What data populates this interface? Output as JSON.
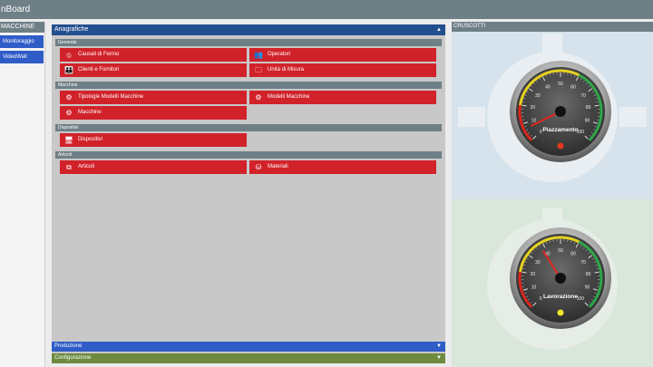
{
  "app": {
    "title": "nBoard"
  },
  "left": {
    "header": "MACCHINE",
    "items": [
      {
        "label": "Monitoraggio"
      },
      {
        "label": "VideoWall"
      }
    ]
  },
  "center": {
    "header": "Anagrafiche",
    "sections": {
      "generale": {
        "title": "Generale",
        "causali": "Causali di Fermo",
        "operatori": "Operatori",
        "clienti": "Clienti e Fornitori",
        "unita": "Unità di Misura"
      },
      "macchine": {
        "title": "Macchine",
        "tipologie": "Tipologie Modelli Macchine",
        "modelli": "Modelli Macchine",
        "macchine": "Macchine"
      },
      "dispositivi": {
        "title": "Dispositivi",
        "dispositivi": "Dispositivi"
      },
      "articoli": {
        "title": "Articoli",
        "articoli": "Articoli",
        "materiali": "Materiali"
      }
    },
    "footers": {
      "produzione": "Produzione",
      "configurazione": "Configurazione"
    }
  },
  "right": {
    "header": "CRUSCOTTI",
    "gauges": [
      {
        "label": "Piazzamento",
        "value": 7,
        "max": 100,
        "ticks": [
          "0",
          "10",
          "20",
          "30",
          "40",
          "50",
          "60",
          "70",
          "80",
          "90",
          "100"
        ],
        "led": "#e33a1f"
      },
      {
        "label": "Lavorazione",
        "value": 38,
        "max": 100,
        "ticks": [
          "0",
          "10",
          "20",
          "30",
          "40",
          "50",
          "60",
          "70",
          "80",
          "90",
          "100"
        ],
        "led": "#f1ea2b"
      }
    ]
  },
  "colors": {
    "red": "#d1222a",
    "blue": "#2f5cc7",
    "navy": "#244f8f",
    "green": "#6d8a3f",
    "gray": "#6f7f86"
  },
  "icons": [
    "gear-icon",
    "people-icon",
    "chart-icon",
    "folder-icon",
    "monitor-icon",
    "box-icon",
    "blocks-icon"
  ]
}
